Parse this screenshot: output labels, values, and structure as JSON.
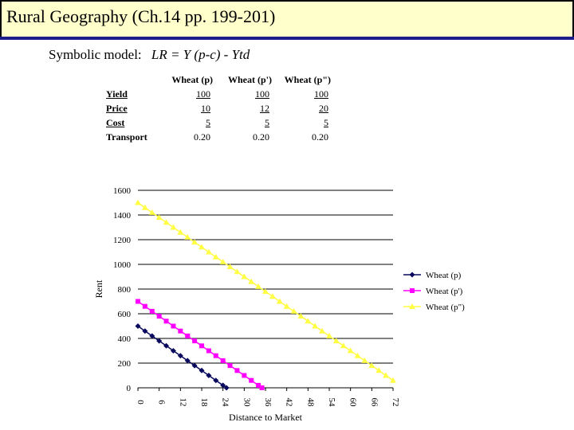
{
  "header": {
    "title": "Rural Geography (Ch.14 pp. 199-201)",
    "model_prefix": "Symbolic model:",
    "model_formula": "LR = Y (p-c) - Ytd"
  },
  "table": {
    "columns": [
      "Wheat (p)",
      "Wheat (p')",
      "Wheat (p\")"
    ],
    "rows": [
      {
        "label": "Yield",
        "values": [
          "100",
          "100",
          "100"
        ],
        "underline": true
      },
      {
        "label": "Price",
        "values": [
          "10",
          "12",
          "20"
        ],
        "underline": true
      },
      {
        "label": "Cost",
        "values": [
          "5",
          "5",
          "5"
        ],
        "underline": true
      },
      {
        "label": "Transport",
        "values": [
          "0.20",
          "0.20",
          "0.20"
        ],
        "underline": false
      }
    ]
  },
  "colors": {
    "header_bg": "#ffffcc",
    "header_rule": "#1c1c8a",
    "series_p": "#0a0a5e",
    "series_p1": "#ff00ff",
    "series_p2": "#ffff44"
  },
  "chart_data": {
    "type": "line",
    "xlabel": "Distance to Market",
    "ylabel": "Rent",
    "ylim": [
      0,
      1600
    ],
    "xlim": [
      0,
      72
    ],
    "yticks": [
      0,
      200,
      400,
      600,
      800,
      1000,
      1200,
      1400,
      1600
    ],
    "xticks": [
      0,
      6,
      12,
      18,
      24,
      30,
      36,
      42,
      48,
      54,
      60,
      66,
      72
    ],
    "grid": "horizontal",
    "legend_position": "right",
    "series": [
      {
        "name": "Wheat (p)",
        "marker": "diamond",
        "color": "#0a0a5e",
        "x": [
          0,
          2,
          4,
          6,
          8,
          10,
          12,
          14,
          16,
          18,
          20,
          22,
          24,
          25
        ],
        "y": [
          500,
          460,
          420,
          380,
          340,
          300,
          260,
          220,
          180,
          140,
          100,
          60,
          20,
          0
        ]
      },
      {
        "name": "Wheat (p')",
        "marker": "square",
        "color": "#ff00ff",
        "x": [
          0,
          2,
          4,
          6,
          8,
          10,
          12,
          14,
          16,
          18,
          20,
          22,
          24,
          26,
          28,
          30,
          32,
          34,
          35
        ],
        "y": [
          700,
          660,
          620,
          580,
          540,
          500,
          460,
          420,
          380,
          340,
          300,
          260,
          220,
          180,
          140,
          100,
          60,
          20,
          0
        ]
      },
      {
        "name": "Wheat (p\")",
        "marker": "triangle",
        "color": "#ffff44",
        "x": [
          0,
          2,
          4,
          6,
          8,
          10,
          12,
          14,
          16,
          18,
          20,
          22,
          24,
          26,
          28,
          30,
          32,
          34,
          36,
          38,
          40,
          42,
          44,
          46,
          48,
          50,
          52,
          54,
          56,
          58,
          60,
          62,
          64,
          66,
          68,
          70,
          72
        ],
        "y": [
          1500,
          1460,
          1420,
          1380,
          1340,
          1300,
          1260,
          1220,
          1180,
          1140,
          1100,
          1060,
          1020,
          980,
          940,
          900,
          860,
          820,
          780,
          740,
          700,
          660,
          620,
          580,
          540,
          500,
          460,
          420,
          380,
          340,
          300,
          260,
          220,
          180,
          140,
          100,
          60
        ]
      }
    ]
  }
}
